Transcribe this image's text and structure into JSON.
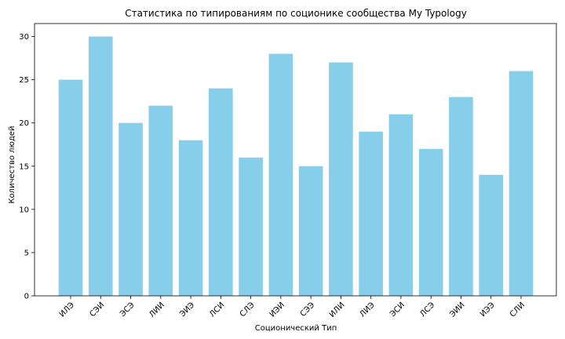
{
  "chart_data": {
    "type": "bar",
    "title": "Статистика по типированиям по соционике сообщества My Typology",
    "xlabel": "Соционический Тип",
    "ylabel": "Количество людей",
    "categories": [
      "ИЛЭ",
      "СЭИ",
      "ЭСЭ",
      "ЛИИ",
      "ЭИЭ",
      "ЛСИ",
      "СЛЭ",
      "ИЭИ",
      "СЭЭ",
      "ИЛИ",
      "ЛИЭ",
      "ЭСИ",
      "ЛСЭ",
      "ЭИИ",
      "ИЭЭ",
      "СЛИ"
    ],
    "values": [
      25,
      30,
      20,
      22,
      18,
      24,
      16,
      28,
      15,
      27,
      19,
      21,
      17,
      23,
      14,
      26
    ],
    "ylim": [
      0,
      31.5
    ],
    "yticks": [
      0,
      5,
      10,
      15,
      20,
      25,
      30
    ],
    "bar_color": "#87ceeb",
    "grid": false
  }
}
